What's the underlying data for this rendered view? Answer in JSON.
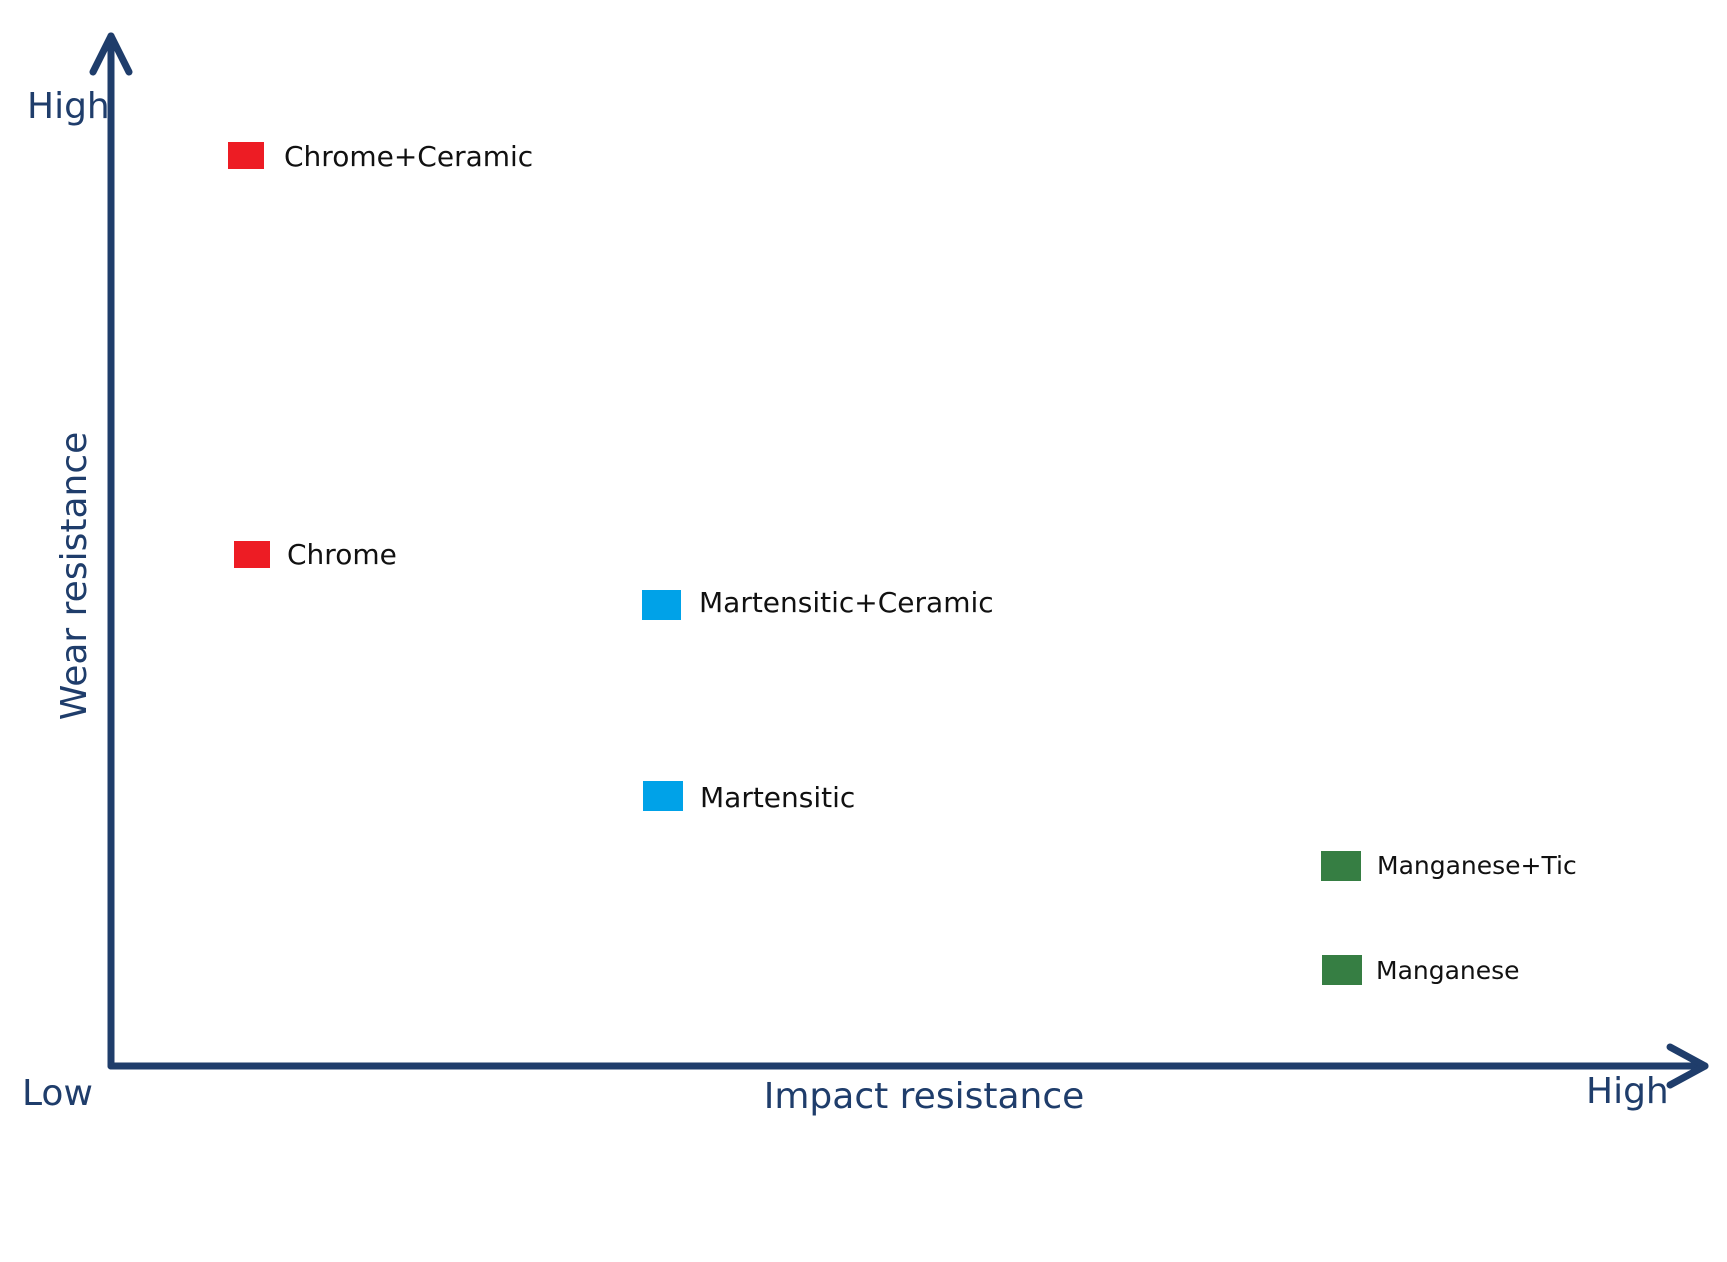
{
  "axes": {
    "y_label": "Wear resistance",
    "y_high": "High",
    "x_label": "Impact resistance",
    "x_low": "Low",
    "x_high": "High"
  },
  "nodes": [
    {
      "label": "Chrome+Ceramic"
    },
    {
      "label": "Chrome"
    },
    {
      "label": "Martensitic+Ceramic"
    },
    {
      "label": "Martensitic"
    },
    {
      "label": "Manganese+Tic"
    },
    {
      "label": "Manganese"
    }
  ]
}
